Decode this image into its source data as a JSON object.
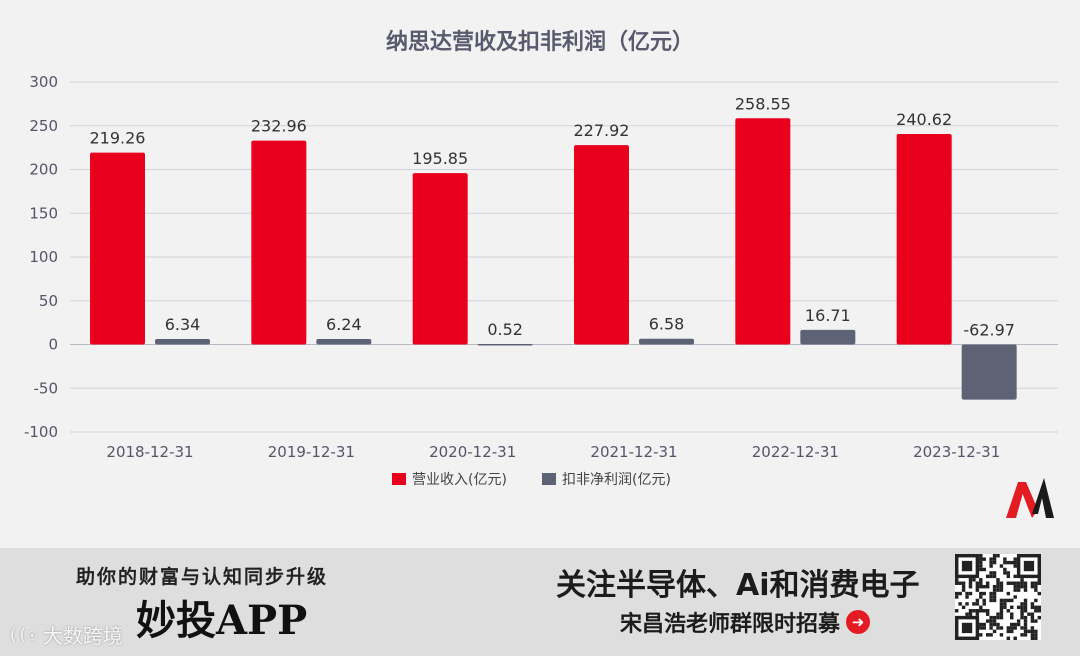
{
  "chart_data": {
    "type": "bar",
    "title": "纳思达营收及扣非利润（亿元）",
    "categories": [
      "2018-12-31",
      "2019-12-31",
      "2020-12-31",
      "2021-12-31",
      "2022-12-31",
      "2023-12-31"
    ],
    "series": [
      {
        "name": "营业收入(亿元)",
        "color": "#e8001c",
        "values": [
          219.26,
          232.96,
          195.85,
          227.92,
          258.55,
          240.62
        ]
      },
      {
        "name": "扣非净利润(亿元)",
        "color": "#5e6275",
        "values": [
          6.34,
          6.24,
          0.52,
          6.58,
          16.71,
          -62.97
        ]
      }
    ],
    "ylim": [
      -100,
      300
    ],
    "yticks": [
      300,
      250,
      200,
      150,
      100,
      50,
      0,
      -50,
      -100
    ],
    "grid": true,
    "legend_position": "bottom-center",
    "xlabel": "",
    "ylabel": ""
  },
  "banner": {
    "slogan": "助你的财富与认知同步升级",
    "app_name": "妙投APP",
    "headline": "关注半导体、Ai和消费电子",
    "subline": "宋昌浩老师群限时招募"
  },
  "watermark": {
    "mark": "((☉",
    "text": "大数跨境"
  },
  "icons": {
    "logo": "m-brand-logo-icon",
    "arrow": "arrow-right-circle-icon",
    "qr": "qr-code-icon"
  }
}
